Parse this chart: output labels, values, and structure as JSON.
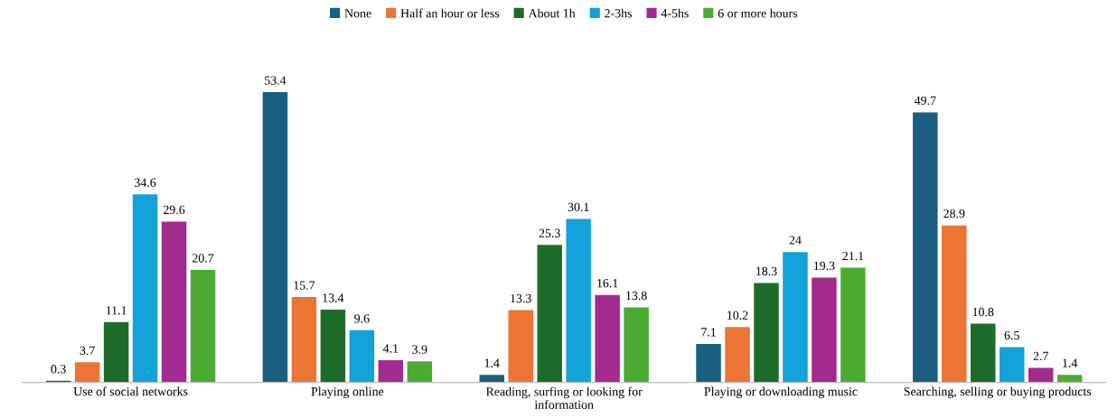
{
  "chart_data": {
    "type": "bar",
    "categories": [
      "Use of social networks",
      "Playing online",
      "Reading, surfing or looking for\ninformation",
      "Playing or downloading music",
      "Searching, selling or buying products"
    ],
    "series": [
      {
        "name": "None",
        "color": "#1b5e7f",
        "values": [
          0.3,
          53.4,
          1.4,
          7.1,
          49.7
        ]
      },
      {
        "name": "Half an hour or less",
        "color": "#ec7535",
        "values": [
          3.7,
          15.7,
          13.3,
          10.2,
          28.9
        ]
      },
      {
        "name": "About 1h",
        "color": "#1d6b2b",
        "values": [
          11.1,
          13.4,
          25.3,
          18.3,
          10.8
        ]
      },
      {
        "name": "2-3hs",
        "color": "#13a1d9",
        "values": [
          34.6,
          9.6,
          30.1,
          24,
          6.5
        ]
      },
      {
        "name": "4-5hs",
        "color": "#a32a8e",
        "values": [
          29.6,
          4.1,
          16.1,
          19.3,
          2.7
        ]
      },
      {
        "name": "6 or more hours",
        "color": "#4bab33",
        "values": [
          20.7,
          3.9,
          13.8,
          21.1,
          1.4
        ]
      }
    ],
    "data_labels": true,
    "legend": "top",
    "tick_labels": "x"
  }
}
